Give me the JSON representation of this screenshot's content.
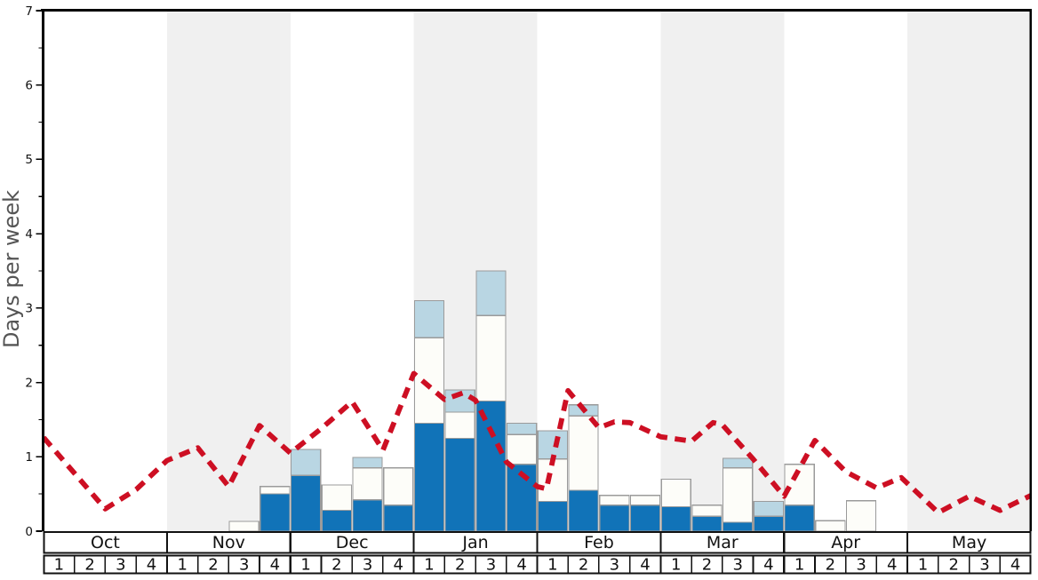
{
  "chart_data": {
    "type": "bar",
    "subtype": "stacked_weekly_bars_with_dashed_line_overlay",
    "title": "",
    "xlabel": "",
    "ylabel": "Days per week",
    "ylim": [
      0,
      7
    ],
    "grid": false,
    "legend_position": "none",
    "y_axis": {
      "major_ticks": [
        0,
        1,
        2,
        3,
        4,
        5,
        6,
        7
      ],
      "minor_tick_step": 0.5
    },
    "x_axis": {
      "months": [
        "Oct",
        "Nov",
        "Dec",
        "Jan",
        "Feb",
        "Mar",
        "Apr",
        "May"
      ],
      "weeks": [
        "1",
        "2",
        "3",
        "4"
      ],
      "shaded_months": [
        "Nov",
        "Jan",
        "Mar",
        "May"
      ]
    },
    "stack_order": "bottom_to_top",
    "series": [
      {
        "name": "dark-blue-days",
        "color": "#1173b8",
        "values": [
          0,
          0,
          0,
          0,
          0,
          0,
          0,
          0.5,
          0.75,
          0.28,
          0.42,
          0.35,
          1.45,
          1.25,
          1.75,
          0.9,
          0.4,
          0.55,
          0.35,
          0.35,
          0.33,
          0.2,
          0.12,
          0.2,
          0.35,
          0,
          0,
          0,
          0,
          0,
          0,
          0
        ]
      },
      {
        "name": "white-days",
        "color": "#fdfdf9",
        "values": [
          0,
          0,
          0,
          0,
          0,
          0,
          0.13,
          0.1,
          0,
          0.34,
          0.43,
          0.5,
          1.15,
          0.35,
          1.15,
          0.4,
          0.57,
          1.0,
          0.13,
          0.13,
          0.37,
          0.15,
          0.73,
          0,
          0.55,
          0.14,
          0.41,
          0,
          0,
          0,
          0,
          0
        ]
      },
      {
        "name": "light-blue-days",
        "color": "#b9d6e3",
        "values": [
          0,
          0,
          0,
          0,
          0,
          0,
          0,
          0,
          0.35,
          0,
          0.14,
          0,
          0.5,
          0.3,
          0.6,
          0.15,
          0.38,
          0.15,
          0,
          0,
          0,
          0,
          0.13,
          0.2,
          0,
          0,
          0,
          0,
          0,
          0,
          0,
          0
        ]
      }
    ],
    "average_line": {
      "name": "red-dashed-line",
      "color": "#cd0f23",
      "style": "dashed",
      "x_units": "weeks_from_oct_week1_start",
      "points": [
        [
          0,
          1.26
        ],
        [
          1,
          0.78
        ],
        [
          2,
          0.3
        ],
        [
          3,
          0.56
        ],
        [
          4,
          0.95
        ],
        [
          5,
          1.12
        ],
        [
          6,
          0.6
        ],
        [
          7,
          1.42
        ],
        [
          8,
          1.05
        ],
        [
          9,
          1.38
        ],
        [
          10,
          1.74
        ],
        [
          11,
          1.09
        ],
        [
          12,
          2.12
        ],
        [
          13,
          1.77
        ],
        [
          13.6,
          1.86
        ],
        [
          14,
          1.76
        ],
        [
          15,
          0.93
        ],
        [
          16,
          0.6
        ],
        [
          16.3,
          0.57
        ],
        [
          17,
          1.89
        ],
        [
          18,
          1.39
        ],
        [
          18.5,
          1.47
        ],
        [
          19,
          1.46
        ],
        [
          20,
          1.27
        ],
        [
          21,
          1.21
        ],
        [
          21.7,
          1.46
        ],
        [
          22,
          1.43
        ],
        [
          23,
          0.97
        ],
        [
          24,
          0.47
        ],
        [
          25,
          1.22
        ],
        [
          26,
          0.8
        ],
        [
          27,
          0.58
        ],
        [
          27.8,
          0.72
        ],
        [
          29,
          0.25
        ],
        [
          30,
          0.47
        ],
        [
          31,
          0.28
        ],
        [
          32,
          0.48
        ]
      ]
    },
    "colors": {
      "background": "#ffffff",
      "month_band": "#f0f0f0",
      "bar_border": "#9b9b9b",
      "axis": "#000000",
      "table_border": "#111111",
      "tick_text": "#111111",
      "ylabel_text": "#555555"
    }
  }
}
